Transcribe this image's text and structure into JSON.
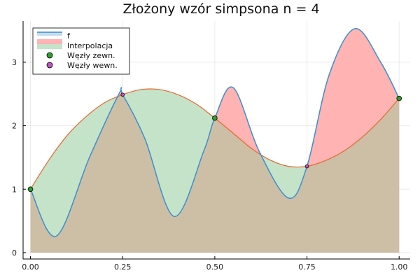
{
  "chart_data": {
    "type": "line",
    "title": "Złożony wzór simpsona n = 4",
    "xlabel": "",
    "ylabel": "",
    "xlim": [
      -0.02,
      1.03
    ],
    "ylim": [
      -0.1,
      3.65
    ],
    "xticks": [
      0.0,
      0.25,
      0.5,
      0.75,
      1.0
    ],
    "xtick_labels": [
      "0.00",
      "0.25",
      "0.50",
      "0.75",
      "1.00"
    ],
    "yticks": [
      0,
      1,
      2,
      3
    ],
    "ytick_labels": [
      "0",
      "1",
      "2",
      "3"
    ],
    "grid": true,
    "legend_position": "top-left",
    "series": [
      {
        "name": "f",
        "style": "line",
        "color": "#3b8fd0",
        "x": [
          0.0,
          0.07,
          0.16,
          0.24,
          0.25,
          0.31,
          0.39,
          0.47,
          0.5,
          0.55,
          0.62,
          0.7,
          0.75,
          0.81,
          0.88,
          0.95,
          1.0
        ],
        "y": [
          1.0,
          0.26,
          1.5,
          2.5,
          2.49,
          1.8,
          0.57,
          1.6,
          2.12,
          2.6,
          1.6,
          0.86,
          1.36,
          2.8,
          3.53,
          3.0,
          2.43
        ]
      },
      {
        "name": "Interpolacja",
        "style": "fill",
        "fill_color": "#ffb3b3",
        "alt_fill_color": "#c5e3c8",
        "line_color": "#e8672f",
        "x": [
          0.0,
          0.05,
          0.1,
          0.15,
          0.2,
          0.25,
          0.3,
          0.35,
          0.4,
          0.45,
          0.5,
          0.55,
          0.6,
          0.65,
          0.7,
          0.75,
          0.8,
          0.85,
          0.9,
          0.95,
          1.0
        ],
        "y": [
          1.0,
          1.46,
          1.85,
          2.14,
          2.36,
          2.49,
          2.57,
          2.57,
          2.49,
          2.34,
          2.12,
          1.88,
          1.64,
          1.46,
          1.36,
          1.36,
          1.45,
          1.6,
          1.82,
          2.1,
          2.43
        ]
      }
    ],
    "markers": [
      {
        "name": "Węzły zewn.",
        "color": "#2ca02c",
        "points": [
          {
            "x": 0.0,
            "y": 1.0
          },
          {
            "x": 0.5,
            "y": 2.12
          },
          {
            "x": 1.0,
            "y": 2.43
          }
        ]
      },
      {
        "name": "Węzły wewn.",
        "color": "#c04fc0",
        "points": [
          {
            "x": 0.25,
            "y": 2.49
          },
          {
            "x": 0.75,
            "y": 1.36
          }
        ]
      }
    ]
  }
}
